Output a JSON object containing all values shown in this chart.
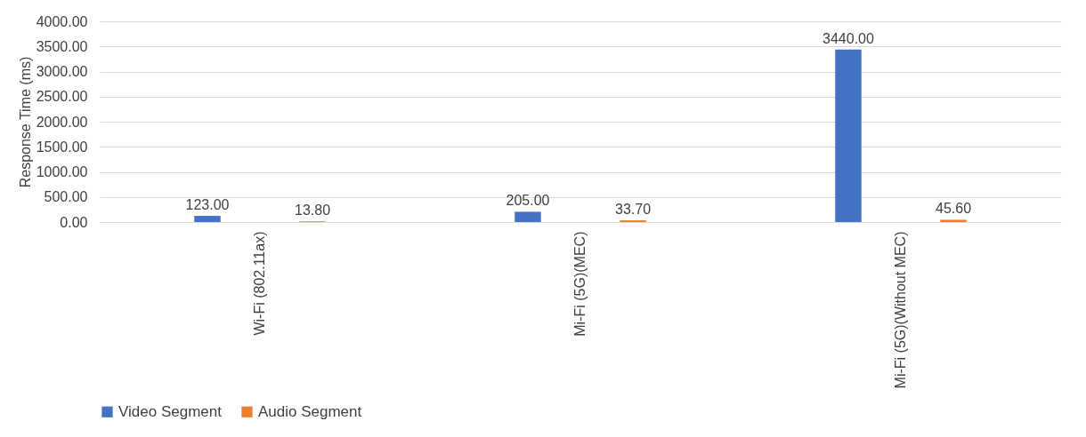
{
  "chart_data": {
    "type": "bar",
    "ylabel": "Response Time (ms)",
    "categories": [
      "Wi-Fi (802.11ax)",
      "Mi-Fi (5G)(MEC)",
      "Mi-Fi (5G)(Without MEC)"
    ],
    "series": [
      {
        "name": "Video Segment",
        "color": "#4472c4",
        "values": [
          123,
          205,
          3440
        ],
        "value_labels": [
          "123.00",
          "205.00",
          "3440.00"
        ]
      },
      {
        "name": "Audio Segment",
        "color": "#ed7d31",
        "values": [
          13.8,
          33.7,
          45.6
        ],
        "value_labels": [
          "13.80",
          "33.70",
          "45.60"
        ]
      }
    ],
    "ylim": [
      0,
      4000
    ],
    "yticks": [
      {
        "value": 0,
        "label": "0.00"
      },
      {
        "value": 500,
        "label": "500.00"
      },
      {
        "value": 1000,
        "label": "1000.00"
      },
      {
        "value": 1500,
        "label": "1500.00"
      },
      {
        "value": 2000,
        "label": "2000.00"
      },
      {
        "value": 2500,
        "label": "2500.00"
      },
      {
        "value": 3000,
        "label": "3000.00"
      },
      {
        "value": 3500,
        "label": "3500.00"
      },
      {
        "value": 4000,
        "label": "4000.00"
      }
    ],
    "grid": "y",
    "legend": "bottom"
  }
}
